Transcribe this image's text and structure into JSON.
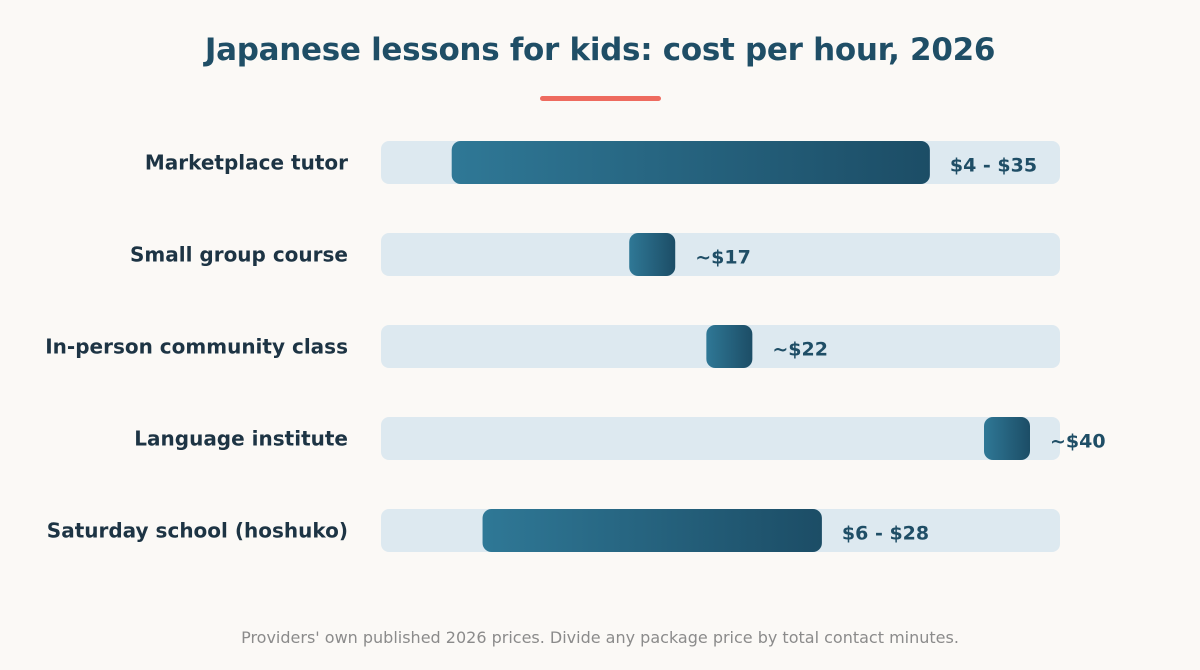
{
  "title": "Japanese lessons for kids: cost per hour, 2026",
  "footnote": "Providers' own published 2026 prices. Divide any package price by total contact minutes.",
  "colors": {
    "accent": "#ee6b5f",
    "track": "#dde9f0",
    "bar_start": "#2f7896",
    "bar_end": "#1c4d66",
    "title": "#1f4e66",
    "label": "#1d3444"
  },
  "chart_data": {
    "type": "bar",
    "orientation": "horizontal-range",
    "xlim": [
      0,
      40
    ],
    "grid": false,
    "categories": [
      "Marketplace tutor",
      "Small group course",
      "In-person community class",
      "Language institute",
      "Saturday school (hoshuko)"
    ],
    "ranges": [
      {
        "low": 4,
        "high": 35,
        "label": "$4 - $35"
      },
      {
        "low": 17,
        "high": 17,
        "label": "~$17"
      },
      {
        "low": 22,
        "high": 22,
        "label": "~$22"
      },
      {
        "low": 40,
        "high": 40,
        "label": "~$40"
      },
      {
        "low": 6,
        "high": 28,
        "label": "$6 - $28"
      }
    ]
  }
}
